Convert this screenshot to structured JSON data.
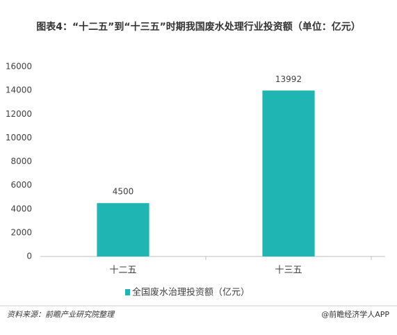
{
  "chart_data": {
    "type": "bar",
    "title": "图表4：“十二五”到“十三五”时期我国废水处理行业投资额（单位：亿元）",
    "categories": [
      "十二五",
      "十三五"
    ],
    "series": [
      {
        "name": "全国废水治理投资额（亿元）",
        "color": "#1fb5b2",
        "values": [
          4500,
          13992
        ]
      }
    ],
    "ylim": [
      0,
      16000
    ],
    "yticks": [
      0,
      2000,
      4000,
      6000,
      8000,
      10000,
      12000,
      14000,
      16000
    ],
    "grid": false,
    "legend": "bottom",
    "source": "资料来源：前瞻产业研究院整理",
    "credit": "@前瞻经济学人APP"
  }
}
